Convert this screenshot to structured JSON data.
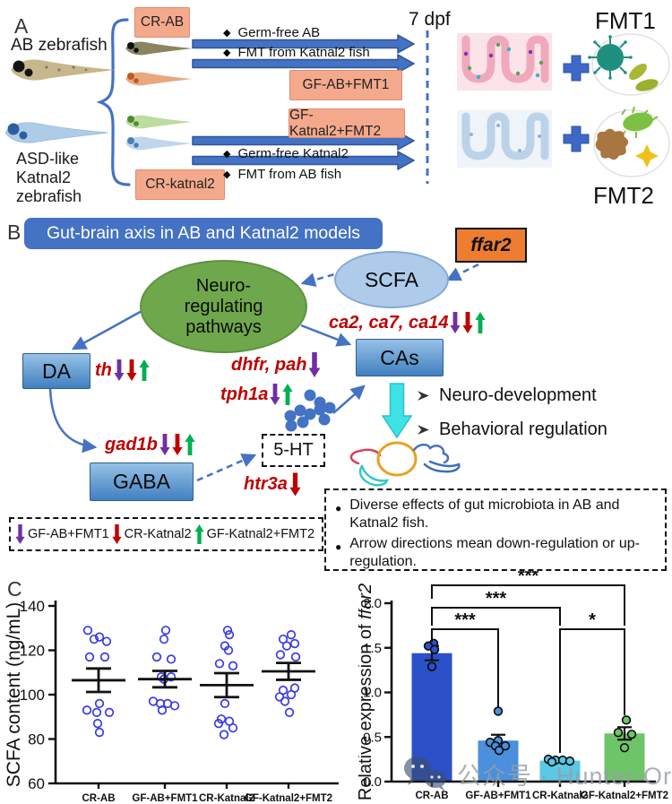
{
  "colors": {
    "arrow_blue": "#4472C4",
    "arrow_blue_dark": "#2F5597",
    "salmon_fill": "#F4A98D",
    "salmon_border": "#DE8C6E",
    "title_blue": "#4472C4",
    "green_ellipse": "#6FA84C",
    "scfa_fill": "#AECBEA",
    "ffar2_fill": "#ED7D31",
    "gene_red": "#C00000",
    "purple": "#7030A0",
    "red": "#C00000",
    "green": "#00B050",
    "cyan": "#3FE3E6",
    "scatter_blue": "#3B3BE8"
  },
  "panelA": {
    "label": "A",
    "ab_fish_label": "AB zebrafish",
    "katnal2_label_lines": [
      "ASD-like",
      "Katnal2",
      "zebrafish"
    ],
    "boxes": {
      "cr_ab": "CR-AB",
      "cr_katnal2": "CR-katnal2",
      "gf_ab_fmt1": "GF-AB+FMT1",
      "gf_katnal2_fmt2": "GF-Katnal2+FMT2"
    },
    "bullet": "◆",
    "arrow_labels": [
      "Germ-free AB",
      "FMT from Katnal2 fish",
      "Germ-free Katnal2",
      "FMT from AB fish"
    ],
    "dpf_label": "7 dpf",
    "fmt1_label": "FMT1",
    "fmt2_label": "FMT2"
  },
  "panelB": {
    "label": "B",
    "title": "Gut-brain axis in AB and Katnal2 models",
    "ffar2": "ffar2",
    "neuro_lines": [
      "Neuro-",
      "regulating",
      "pathways"
    ],
    "scfa": "SCFA",
    "da": "DA",
    "gaba": "GABA",
    "cas": "CAs",
    "five_ht": "5-HT",
    "genes": {
      "th": "th",
      "ca": "ca2, ca7, ca14",
      "dhfr_pah": "dhfr, pah",
      "tph1a": "tph1a",
      "gad1b": "gad1b",
      "htr3a": "htr3a"
    },
    "outcomes": [
      "Neuro-development",
      "Behavioral regulation"
    ],
    "note_bullet": "●",
    "notes": [
      "Diverse effects of gut microbiota in AB and Katnal2 fish.",
      "Arrow directions mean down-regulation or up-regulation."
    ],
    "legend": [
      {
        "label": "GF-AB+FMT1"
      },
      {
        "label": "CR-Katnal2"
      },
      {
        "label": "GF-Katnal2+FMT2"
      }
    ]
  },
  "panelC": {
    "label": "C"
  },
  "watermark": {
    "text": "公众号 · Hunter-Organs"
  },
  "chart_data": [
    {
      "type": "scatter",
      "title": "",
      "ylabel": "SCFA content (ng/mL)",
      "categories": [
        "CR-AB",
        "GF-AB+FMT1",
        "CR-Katnal2",
        "GF-Katnal2+FMT2"
      ],
      "ylim": [
        60,
        140
      ],
      "yticks": [
        60,
        80,
        100,
        120,
        140
      ],
      "grid": false,
      "points": [
        [
          129,
          126,
          125,
          124,
          117,
          117,
          96,
          93,
          92,
          92,
          87,
          83
        ],
        [
          129,
          125,
          117,
          116,
          108,
          108,
          107,
          97,
          96,
          96,
          95,
          93
        ],
        [
          129,
          127,
          122,
          120,
          114,
          113,
          96,
          89,
          88,
          87,
          85,
          82
        ],
        [
          127,
          125,
          123,
          122,
          118,
          117,
          103,
          102,
          100,
          99,
          97,
          92
        ]
      ],
      "mean": [
        106.5,
        107,
        104.3,
        110.5
      ],
      "sem": [
        5.3,
        3.7,
        5.4,
        3.8
      ]
    },
    {
      "type": "bar",
      "title": "",
      "ylabel": "Relative expression of ffar2",
      "ylabel_prefix": "Relative expression of ",
      "ylabel_italic": "ffar2",
      "categories": [
        "CR-AB",
        "GF-AB+FMT1",
        "CR-Katnal2",
        "GF-Katnal2+FMT2"
      ],
      "ylim": [
        0,
        2.0
      ],
      "yticks": [
        0,
        0.5,
        1.0,
        1.5,
        2.0
      ],
      "grid": false,
      "values": [
        1.44,
        0.46,
        0.235,
        0.54
      ],
      "errors": [
        0.08,
        0.065,
        0.015,
        0.07
      ],
      "points": [
        [
          1.55,
          1.52,
          1.48,
          1.29
        ],
        [
          0.79,
          0.46,
          0.44,
          0.4,
          0.4,
          0.35
        ],
        [
          0.25,
          0.24,
          0.24,
          0.23,
          0.22
        ],
        [
          0.69,
          0.55,
          0.53,
          0.38
        ]
      ],
      "bar_colors": [
        "#2B50C8",
        "#4A90DC",
        "#5BC8E4",
        "#6EC568"
      ],
      "significance": [
        {
          "from": 0,
          "to": 1,
          "label": "***"
        },
        {
          "from": 0,
          "to": 2,
          "label": "***"
        },
        {
          "from": 0,
          "to": 3,
          "label": "***"
        },
        {
          "from": 2,
          "to": 3,
          "label": "*"
        }
      ]
    }
  ]
}
